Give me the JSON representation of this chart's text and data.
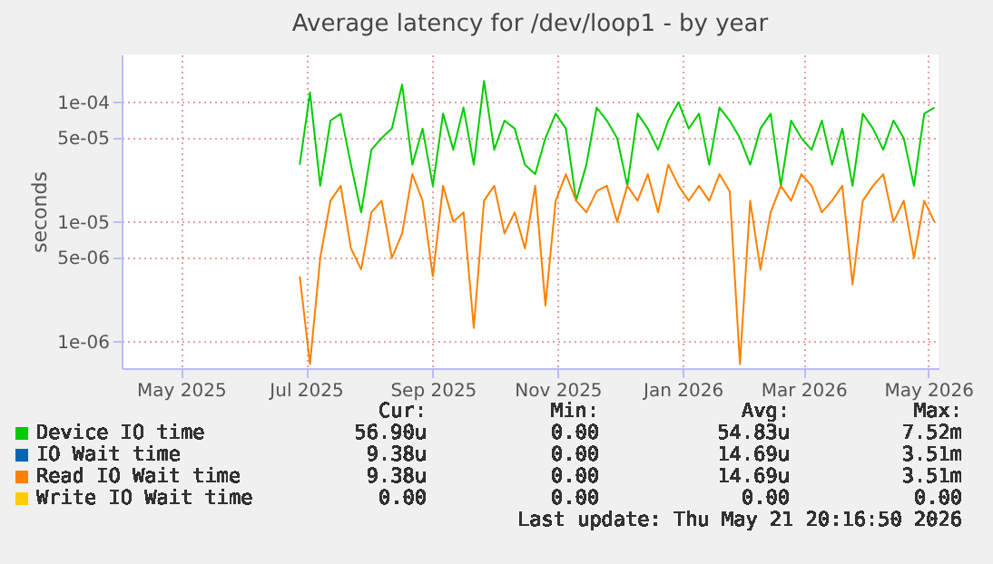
{
  "chart_data": {
    "type": "line",
    "title": "Average latency for /dev/loop1 - by year",
    "ylabel": "seconds",
    "x": [
      "2025-06-28",
      "2025-07-03",
      "2025-07-08",
      "2025-07-13",
      "2025-07-18",
      "2025-07-23",
      "2025-07-28",
      "2025-08-02",
      "2025-08-07",
      "2025-08-12",
      "2025-08-17",
      "2025-08-22",
      "2025-08-27",
      "2025-09-01",
      "2025-09-06",
      "2025-09-11",
      "2025-09-16",
      "2025-09-21",
      "2025-09-26",
      "2025-10-01",
      "2025-10-06",
      "2025-10-11",
      "2025-10-16",
      "2025-10-21",
      "2025-10-26",
      "2025-10-31",
      "2025-11-05",
      "2025-11-10",
      "2025-11-15",
      "2025-11-20",
      "2025-11-25",
      "2025-11-30",
      "2025-12-05",
      "2025-12-10",
      "2025-12-15",
      "2025-12-20",
      "2025-12-25",
      "2025-12-30",
      "2026-01-04",
      "2026-01-09",
      "2026-01-14",
      "2026-01-19",
      "2026-01-24",
      "2026-01-29",
      "2026-02-03",
      "2026-02-08",
      "2026-02-13",
      "2026-02-18",
      "2026-02-23",
      "2026-02-28",
      "2026-03-05",
      "2026-03-10",
      "2026-03-15",
      "2026-03-20",
      "2026-03-25",
      "2026-03-30",
      "2026-04-04",
      "2026-04-09",
      "2026-04-14",
      "2026-04-19",
      "2026-04-24",
      "2026-04-29",
      "2026-05-04"
    ],
    "series": [
      {
        "name": "Device IO time",
        "color": "#00cc00",
        "values": [
          3e-05,
          0.00012,
          2e-05,
          7e-05,
          8e-05,
          3e-05,
          1.2e-05,
          4e-05,
          5e-05,
          6e-05,
          0.00014,
          3e-05,
          6e-05,
          2e-05,
          8e-05,
          4e-05,
          9e-05,
          3e-05,
          0.00015,
          4e-05,
          7e-05,
          6e-05,
          3e-05,
          2.5e-05,
          5e-05,
          8e-05,
          6e-05,
          1.5e-05,
          3e-05,
          9e-05,
          7e-05,
          5e-05,
          2e-05,
          8e-05,
          6e-05,
          4e-05,
          7e-05,
          0.0001,
          6e-05,
          8e-05,
          3e-05,
          9e-05,
          7e-05,
          5e-05,
          3e-05,
          6e-05,
          8e-05,
          2e-05,
          7e-05,
          5e-05,
          4e-05,
          7e-05,
          3e-05,
          6e-05,
          2e-05,
          8e-05,
          6e-05,
          4e-05,
          7e-05,
          5e-05,
          2e-05,
          8e-05,
          9e-05
        ]
      },
      {
        "name": "IO Wait time",
        "color": "#0066b3",
        "values": [
          null,
          null,
          null,
          null,
          null,
          null,
          null,
          null,
          null,
          null,
          null,
          null,
          null,
          null,
          null,
          null,
          null,
          null,
          null,
          null,
          null,
          null,
          null,
          null,
          null,
          null,
          null,
          null,
          null,
          null,
          null,
          null,
          null,
          null,
          null,
          null,
          null,
          null,
          null,
          null,
          null,
          null,
          null,
          null,
          null,
          null,
          null,
          null,
          null,
          null,
          null,
          null,
          null,
          null,
          null,
          null,
          null,
          null,
          null,
          null,
          null,
          null,
          null
        ]
      },
      {
        "name": "Read IO Wait time",
        "color": "#ff8000",
        "values": [
          3.5e-06,
          6.5e-07,
          5e-06,
          1.5e-05,
          2e-05,
          6e-06,
          4e-06,
          1.2e-05,
          1.5e-05,
          5e-06,
          8e-06,
          2.5e-05,
          1.5e-05,
          3.5e-06,
          2e-05,
          1e-05,
          1.2e-05,
          1.3e-06,
          1.5e-05,
          2e-05,
          8e-06,
          1.2e-05,
          6e-06,
          2e-05,
          2e-06,
          1.5e-05,
          2.5e-05,
          1.5e-05,
          1.2e-05,
          1.8e-05,
          2e-05,
          1e-05,
          2e-05,
          1.5e-05,
          2.5e-05,
          1.2e-05,
          3e-05,
          2e-05,
          1.5e-05,
          2e-05,
          1.5e-05,
          2.5e-05,
          1.8e-05,
          6.5e-07,
          1.5e-05,
          4e-06,
          1.2e-05,
          2e-05,
          1.5e-05,
          2.5e-05,
          2e-05,
          1.2e-05,
          1.5e-05,
          2e-05,
          3e-06,
          1.5e-05,
          2e-05,
          2.5e-05,
          1e-05,
          1.5e-05,
          5e-06,
          1.5e-05,
          1e-05
        ]
      },
      {
        "name": "Write IO Wait time",
        "color": "#ffcc00",
        "values": [
          null,
          null,
          null,
          null,
          null,
          null,
          null,
          null,
          null,
          null,
          null,
          null,
          null,
          null,
          null,
          null,
          null,
          null,
          null,
          null,
          null,
          null,
          null,
          null,
          null,
          null,
          null,
          null,
          null,
          null,
          null,
          null,
          null,
          null,
          null,
          null,
          null,
          null,
          null,
          null,
          null,
          null,
          null,
          null,
          null,
          null,
          null,
          null,
          null,
          null,
          null,
          null,
          null,
          null,
          null,
          null,
          null,
          null,
          null,
          null,
          null,
          null,
          null
        ]
      }
    ],
    "log": true,
    "ylim": [
      6e-07,
      0.00025
    ],
    "yticks": [
      {
        "value": 1e-06,
        "label": "1e-06"
      },
      {
        "value": 5e-06,
        "label": "5e-06"
      },
      {
        "value": 1e-05,
        "label": "1e-05"
      },
      {
        "value": 5e-05,
        "label": "5e-05"
      },
      {
        "value": 0.0001,
        "label": "1e-04"
      }
    ],
    "xlim": [
      "2025-04-02",
      "2026-05-06"
    ],
    "xticks": [
      {
        "value": "2025-05-01",
        "label": "May 2025"
      },
      {
        "value": "2025-07-01",
        "label": "Jul 2025"
      },
      {
        "value": "2025-09-01",
        "label": "Sep 2025"
      },
      {
        "value": "2025-11-01",
        "label": "Nov 2025"
      },
      {
        "value": "2026-01-01",
        "label": "Jan 2026"
      },
      {
        "value": "2026-03-01",
        "label": "Mar 2026"
      },
      {
        "value": "2026-05-01",
        "label": "May 2026"
      }
    ],
    "grid": true,
    "legend": "bottom left",
    "line_style": "solid",
    "marker": "none",
    "annotations": [
      "Cur:",
      "Min:",
      "Avg:",
      "Max:",
      "56.90u",
      "0.00",
      "54.83u",
      "7.52m",
      "9.38u",
      "0.00",
      "14.69u",
      "3.51m",
      "9.38u",
      "0.00",
      "14.69u",
      "3.51m",
      "0.00",
      "0.00",
      "0.00",
      "0.00",
      "Last update: Thu May 21 20:16:50 2026"
    ]
  }
}
